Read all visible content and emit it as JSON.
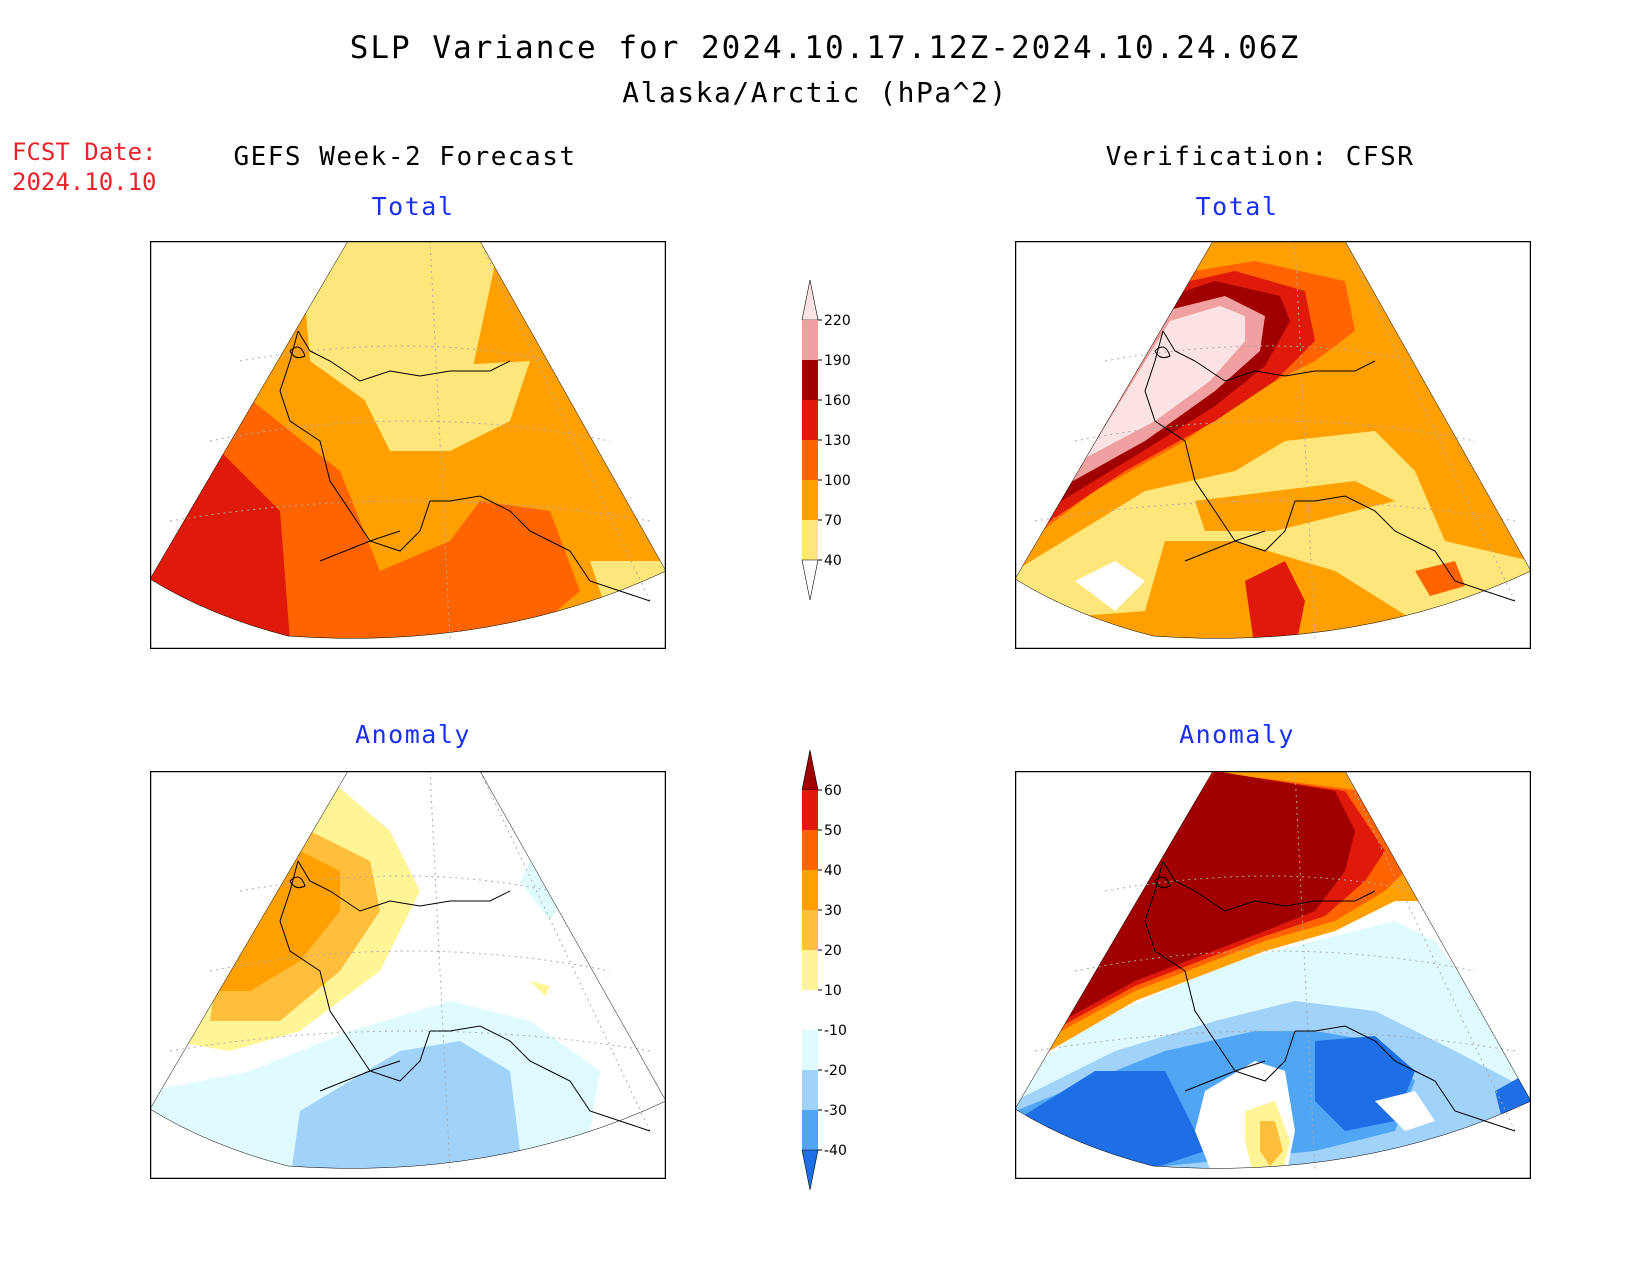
{
  "header": {
    "title": "SLP Variance for 2024.10.17.12Z-2024.10.24.06Z",
    "subtitle": "Alaska/Arctic (hPa^2)",
    "fcst_label": "FCST Date:",
    "fcst_value": "2024.10.10"
  },
  "columns": {
    "left": "GEFS Week-2 Forecast",
    "right": "Verification: CFSR"
  },
  "panels": {
    "top_left": "Total",
    "top_right": "Total",
    "bottom_left": "Anomaly",
    "bottom_right": "Anomaly"
  },
  "colorbar_total": {
    "levels": [
      "220",
      "190",
      "160",
      "130",
      "100",
      "70",
      "40"
    ],
    "colors": [
      "#fbe3e3",
      "#f0a0a0",
      "#a00000",
      "#e01a0a",
      "#ff6400",
      "#ffa000",
      "#ffe67a",
      "#ffffff"
    ]
  },
  "colorbar_anomaly": {
    "levels": [
      "60",
      "50",
      "40",
      "30",
      "20",
      "10",
      "-10",
      "-20",
      "-30",
      "-40"
    ],
    "colors": [
      "#a00000",
      "#e01a0a",
      "#ff6400",
      "#ffa000",
      "#ffbe3c",
      "#fff596",
      "#ffffff",
      "#e0fbff",
      "#a0d2fa",
      "#50a5f5",
      "#1e6ee6"
    ]
  },
  "colors": {
    "title_blue": "#1a31f5",
    "fcst_red": "#e8232b"
  }
}
